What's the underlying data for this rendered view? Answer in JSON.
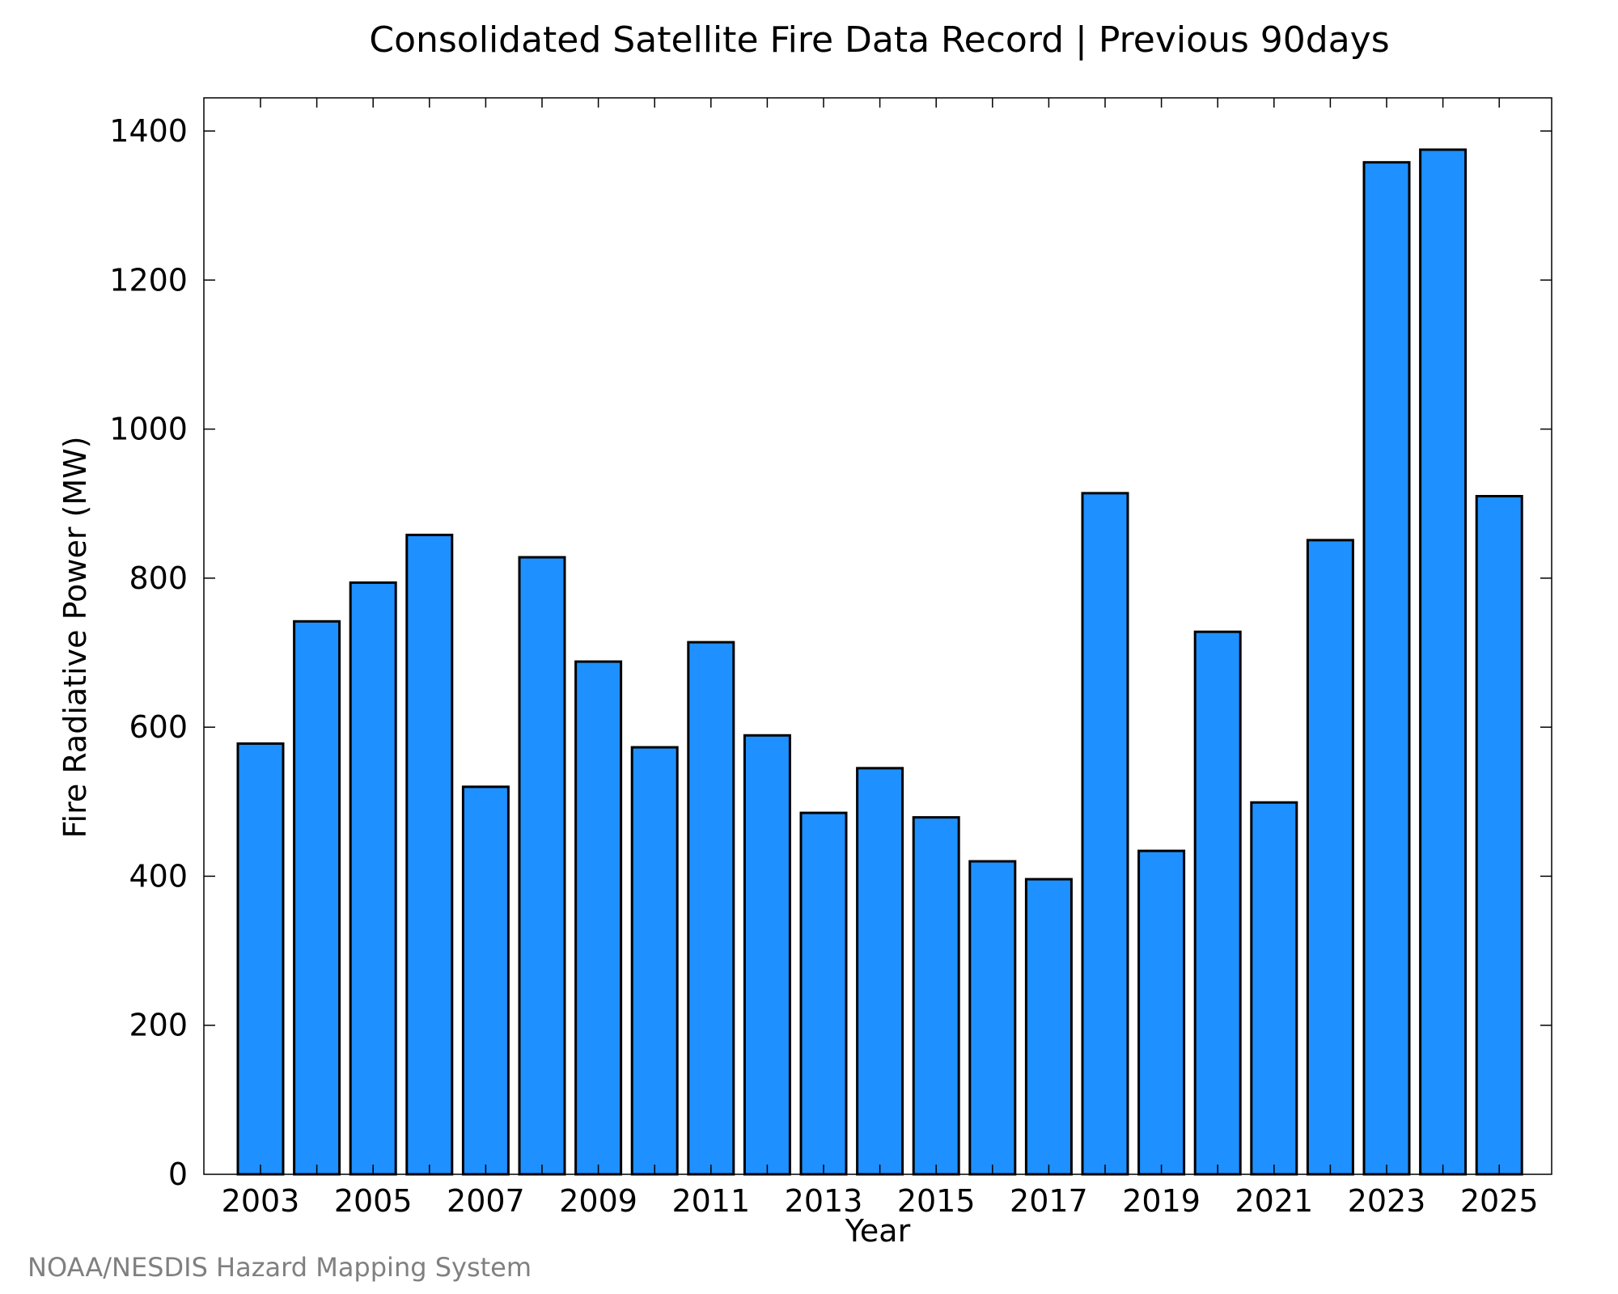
{
  "chart_data": {
    "type": "bar",
    "title": "Consolidated Satellite Fire Data Record | Previous 90days",
    "xlabel": "Year",
    "ylabel": "Fire Radiative Power (MW)",
    "categories": [
      "2003",
      "2004",
      "2005",
      "2006",
      "2007",
      "2008",
      "2009",
      "2010",
      "2011",
      "2012",
      "2013",
      "2014",
      "2015",
      "2016",
      "2017",
      "2018",
      "2019",
      "2020",
      "2021",
      "2022",
      "2023",
      "2024",
      "2025"
    ],
    "values": [
      578,
      742,
      794,
      858,
      520,
      828,
      688,
      573,
      714,
      589,
      485,
      545,
      479,
      420,
      396,
      914,
      434,
      728,
      499,
      851,
      1358,
      1375,
      910
    ],
    "x_tick_labels": [
      "2003",
      "2005",
      "2007",
      "2009",
      "2011",
      "2013",
      "2015",
      "2017",
      "2019",
      "2021",
      "2023",
      "2025"
    ],
    "y_ticks": [
      0,
      200,
      400,
      600,
      800,
      1000,
      1200,
      1400
    ],
    "ylim": [
      0,
      1400
    ],
    "grid": false,
    "bar_color": "#1e90ff",
    "bar_edge_color": "#000000"
  },
  "credit": "NOAA/NESDIS Hazard Mapping System"
}
